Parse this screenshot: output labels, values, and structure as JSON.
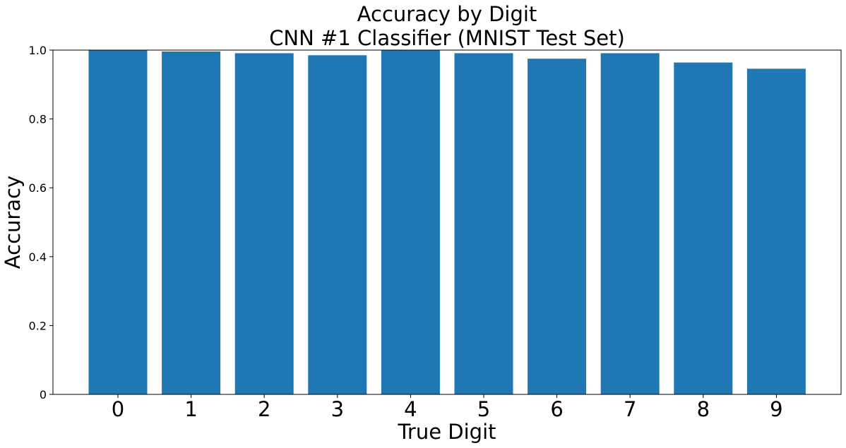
{
  "chart_data": {
    "type": "bar",
    "title": "Accuracy by Digit",
    "subtitle": "CNN #1 Classifier (MNIST Test Set)",
    "xlabel": "True Digit",
    "ylabel": "Accuracy",
    "categories": [
      "0",
      "1",
      "2",
      "3",
      "4",
      "5",
      "6",
      "7",
      "8",
      "9"
    ],
    "values": [
      0.999,
      0.996,
      0.991,
      0.985,
      0.999,
      0.991,
      0.975,
      0.991,
      0.964,
      0.946
    ],
    "ylim": [
      0,
      1.0
    ],
    "yticks": [
      "0",
      "0.2",
      "0.4",
      "0.6",
      "0.8",
      "1.0"
    ],
    "grid": false,
    "bar_color": "#1f77b4"
  }
}
